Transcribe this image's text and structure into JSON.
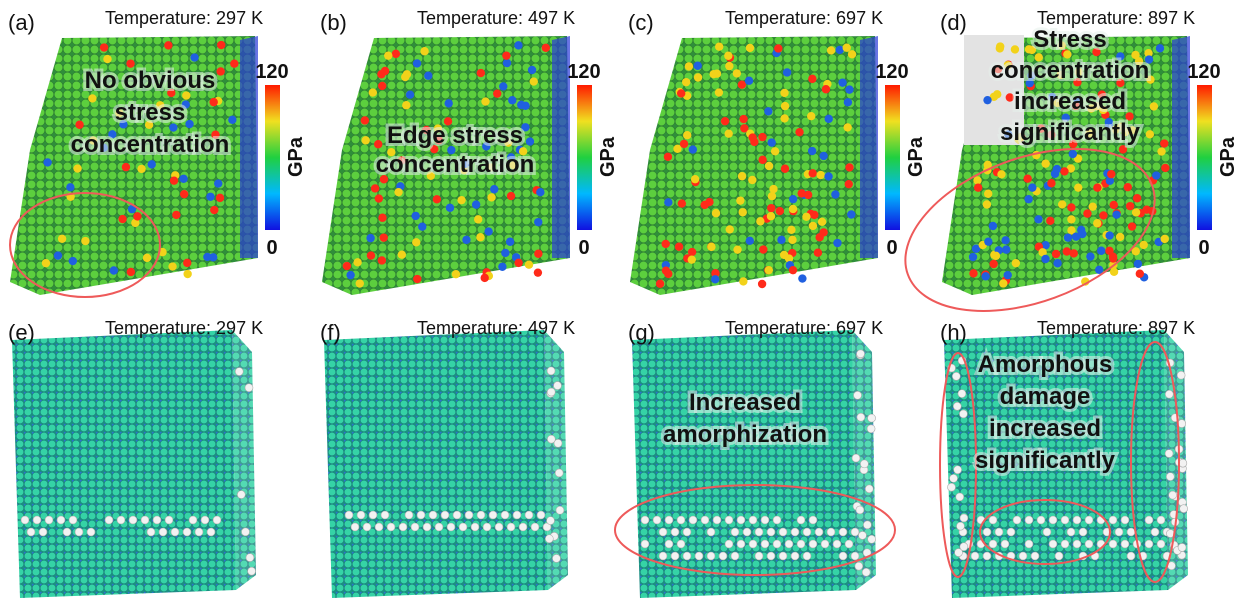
{
  "panels": [
    {
      "label": "(a)",
      "temperature": "Temperature: 297 K",
      "annotation": [
        "No obvious",
        "stress",
        "concentration"
      ],
      "colorbar": {
        "max": "120",
        "min": "0",
        "unit": "GPa"
      }
    },
    {
      "label": "(b)",
      "temperature": "Temperature: 497 K",
      "annotation": [
        "Edge stress",
        "concentration"
      ],
      "colorbar": {
        "max": "120",
        "min": "0",
        "unit": "GPa"
      }
    },
    {
      "label": "(c)",
      "temperature": "Temperature: 697 K",
      "colorbar": {
        "max": "120",
        "min": "0",
        "unit": "GPa"
      }
    },
    {
      "label": "(d)",
      "temperature": "Temperature: 897 K",
      "annotation": [
        "Stress",
        "concentration",
        "increased",
        "significantly"
      ],
      "colorbar": {
        "max": "120",
        "min": "0",
        "unit": "GPa"
      }
    },
    {
      "label": "(e)",
      "temperature": "Temperature: 297 K"
    },
    {
      "label": "(f)",
      "temperature": "Temperature: 497 K"
    },
    {
      "label": "(g)",
      "temperature": "Temperature: 697 K",
      "annotation": [
        "Increased",
        "amorphization"
      ]
    },
    {
      "label": "(h)",
      "temperature": "Temperature: 897 K",
      "annotation": [
        "Amorphous",
        "damage",
        "increased",
        "significantly"
      ]
    }
  ]
}
